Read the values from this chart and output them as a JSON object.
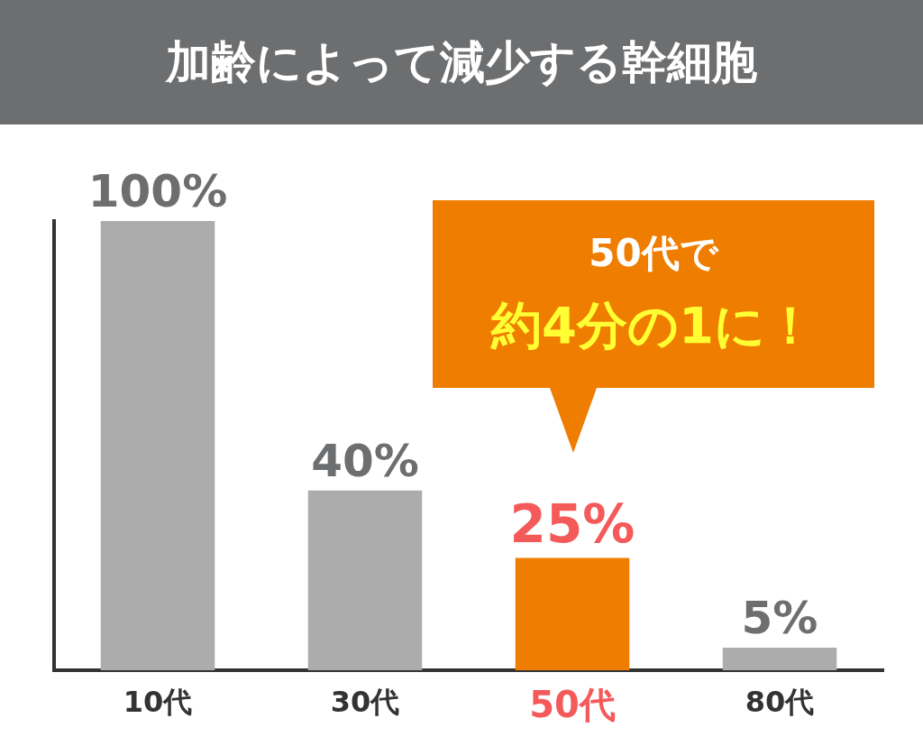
{
  "chart_data": {
    "type": "bar",
    "title": "加齢によって減少する幹細胞",
    "categories": [
      "10代",
      "30代",
      "50代",
      "80代"
    ],
    "values": [
      100,
      40,
      25,
      5
    ],
    "colors": [
      "#acacac",
      "#acacac",
      "#ef7d00",
      "#acacac"
    ],
    "value_labels": [
      "100%",
      "40%",
      "25%",
      "5%"
    ],
    "ylim": [
      0,
      100
    ],
    "tick_labels": "x",
    "grid": false,
    "legend": false,
    "annotations": [
      "50代で",
      "約4分の1に！"
    ]
  }
}
